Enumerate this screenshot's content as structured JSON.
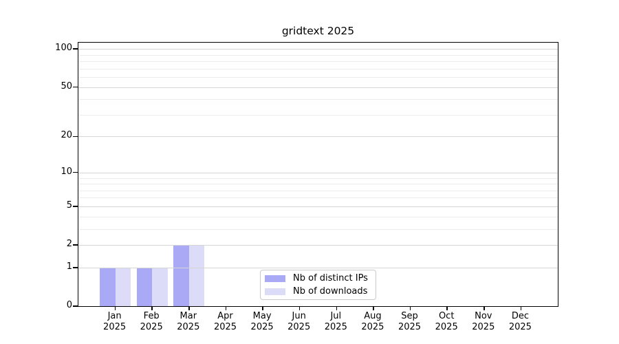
{
  "figure": {
    "background": "#ffffff"
  },
  "chart_data": {
    "type": "bar",
    "title": "gridtext 2025",
    "categories": [
      "Jan",
      "Feb",
      "Mar",
      "Apr",
      "May",
      "Jun",
      "Jul",
      "Aug",
      "Sep",
      "Oct",
      "Nov",
      "Dec"
    ],
    "x_tick_second_line": "2025",
    "series": [
      {
        "name": "Nb of distinct IPs",
        "color": "#a9a9f5",
        "values": [
          1,
          1,
          2,
          0,
          0,
          0,
          0,
          0,
          0,
          0,
          0,
          0
        ]
      },
      {
        "name": "Nb of downloads",
        "color": "#dcdcf8",
        "values": [
          1,
          1,
          2,
          0,
          0,
          0,
          0,
          0,
          0,
          0,
          0,
          0
        ]
      }
    ],
    "xlabel": "",
    "ylabel": "",
    "yscale": "log1p",
    "ylim": [
      0,
      112
    ],
    "yticks": [
      0,
      1,
      2,
      5,
      10,
      20,
      50,
      100
    ],
    "minor_gridlines": [
      3,
      4,
      6,
      7,
      8,
      9,
      30,
      40,
      60,
      70,
      80,
      90
    ],
    "grid": true,
    "legend_position": "lower center",
    "colors": {
      "axis": "#000000",
      "major_grid": "#d5d5d5",
      "minor_grid": "#ececec",
      "legend_border": "#c9c9c9",
      "text": "#000000"
    }
  }
}
